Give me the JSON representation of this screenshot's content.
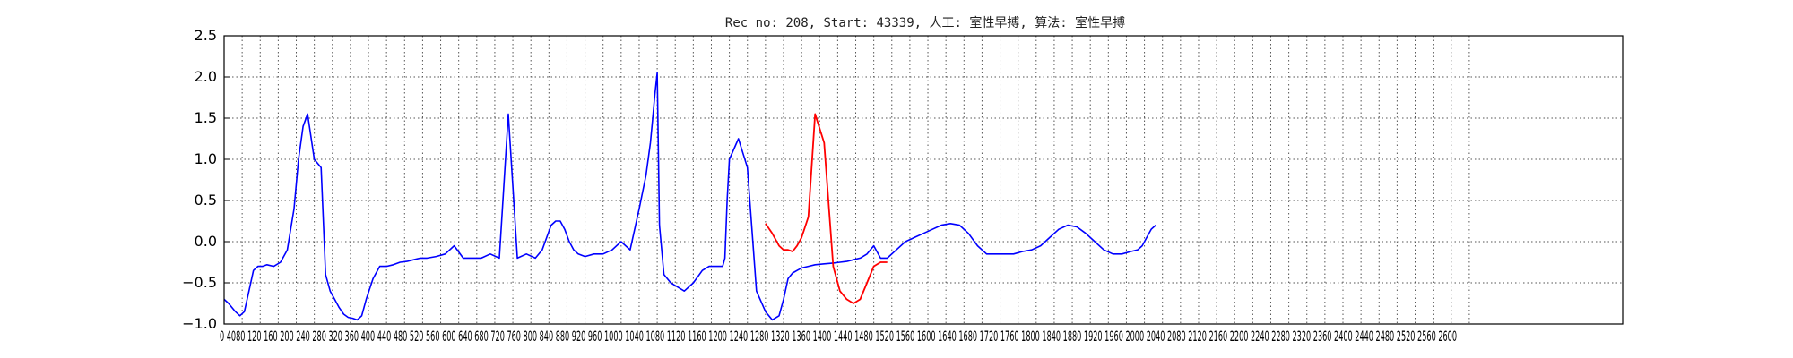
{
  "chart_data": {
    "type": "line",
    "title": "Rec_no: 208, Start: 43339, 人工: 室性早搏, 算法: 室性早搏",
    "xlabel": "",
    "ylabel": "",
    "xlim": [
      0,
      3100
    ],
    "ylim": [
      -1.0,
      2.5
    ],
    "grid": true,
    "yticks": [
      -1.0,
      -0.5,
      0.0,
      0.5,
      1.0,
      1.5,
      2.0,
      2.5
    ],
    "ytick_labels": [
      "−1.0",
      "−0.5",
      "0.0",
      "0.5",
      "1.0",
      "1.5",
      "2.0",
      "2.5"
    ],
    "xtick_step": 40,
    "xtick_max": 2760,
    "xtick_text": "0 4080 120 160 200 240 280 320 360 400 440 480 520 560 600 640 680 720 760 800 840 880 920 960 1000 1040 1080 1120 1160 1200 1240 1280 1320 1360 1400 1440 1480 1520 1560 1600 1640 1680 1720 1760 1800 1840 1880 1920 1960 2000 2040 2080 2120 2160 2200 2240 2280 2320 2360 2400 2440 2480 2520 2560 2600",
    "series": [
      {
        "color": "#0000ff",
        "x": [
          0,
          10,
          25,
          35,
          45,
          55,
          65,
          75,
          85,
          95,
          110,
          125,
          140,
          155,
          165,
          175,
          185,
          200,
          215,
          225,
          235,
          245,
          255,
          265,
          275,
          285,
          295,
          305,
          315,
          330,
          345,
          360,
          375,
          390,
          405,
          420,
          435,
          450,
          470,
          490,
          510,
          530,
          550,
          570,
          590,
          610,
          630,
          650,
          670,
          690,
          705,
          715,
          725,
          735,
          745,
          755,
          765,
          775,
          785,
          800,
          820,
          840,
          860,
          880,
          900,
          920,
          935,
          945,
          950,
          955,
          960,
          965,
          975,
          990,
          1005,
          1020,
          1040,
          1060,
          1075,
          1085,
          1095,
          1100,
          1105,
          1110,
          1115,
          1120,
          1140,
          1160,
          1180,
          1200,
          1215,
          1230,
          1240,
          1250,
          1260,
          1270,
          1280,
          1295,
          1310,
          1330,
          1350,
          1365,
          1380,
          1395,
          1410,
          1425,
          1440,
          1455,
          1470,
          1490,
          1510,
          1530,
          1550,
          1570,
          1590,
          1610,
          1630,
          1650,
          1670,
          1690,
          1710,
          1730,
          1750,
          1770,
          1790,
          1810,
          1830,
          1850,
          1870,
          1890,
          1910,
          1930,
          1950,
          1970,
          1990,
          2010,
          2025,
          2035,
          2040,
          2045,
          2050,
          2055,
          2065
        ],
        "y": [
          -0.7,
          -0.75,
          -0.85,
          -0.9,
          -0.85,
          -0.6,
          -0.35,
          -0.3,
          -0.3,
          -0.28,
          -0.3,
          -0.25,
          -0.1,
          0.4,
          1.0,
          1.4,
          1.55,
          1.0,
          0.9,
          -0.4,
          -0.6,
          -0.7,
          -0.8,
          -0.88,
          -0.92,
          -0.93,
          -0.95,
          -0.9,
          -0.7,
          -0.45,
          -0.3,
          -0.3,
          -0.28,
          -0.25,
          -0.24,
          -0.22,
          -0.2,
          -0.2,
          -0.18,
          -0.15,
          -0.05,
          -0.2,
          -0.2,
          -0.2,
          -0.15,
          -0.2,
          1.55,
          -0.2,
          -0.15,
          -0.2,
          -0.1,
          0.05,
          0.2,
          0.25,
          0.25,
          0.15,
          0.0,
          -0.1,
          -0.15,
          -0.18,
          -0.15,
          -0.15,
          -0.1,
          0.0,
          -0.1,
          0.4,
          0.8,
          1.2,
          1.5,
          1.8,
          2.05,
          0.2,
          -0.4,
          -0.5,
          -0.55,
          -0.6,
          -0.5,
          -0.35,
          -0.3,
          -0.3,
          -0.3,
          -0.3,
          -0.3,
          -0.2,
          0.5,
          1.0,
          1.25,
          0.9,
          -0.6,
          -0.85,
          -0.95,
          -0.9,
          -0.7,
          -0.45,
          -0.38,
          -0.35,
          -0.32,
          -0.3,
          -0.28,
          -0.27,
          -0.26,
          -0.25,
          -0.24,
          -0.22,
          -0.2,
          -0.15,
          -0.05,
          -0.2,
          -0.2,
          -0.1,
          0.0,
          0.05,
          0.1,
          0.15,
          0.2,
          0.22,
          0.2,
          0.1,
          -0.05,
          -0.15,
          -0.15,
          -0.15,
          -0.15,
          -0.12,
          -0.1,
          -0.05,
          0.05,
          0.15,
          0.2,
          0.18,
          0.1,
          0.0,
          -0.1,
          -0.15,
          -0.15,
          -0.12,
          -0.1,
          -0.05,
          0.0,
          0.05,
          0.1,
          0.15,
          0.2
        ]
      }
    ]
  }
}
